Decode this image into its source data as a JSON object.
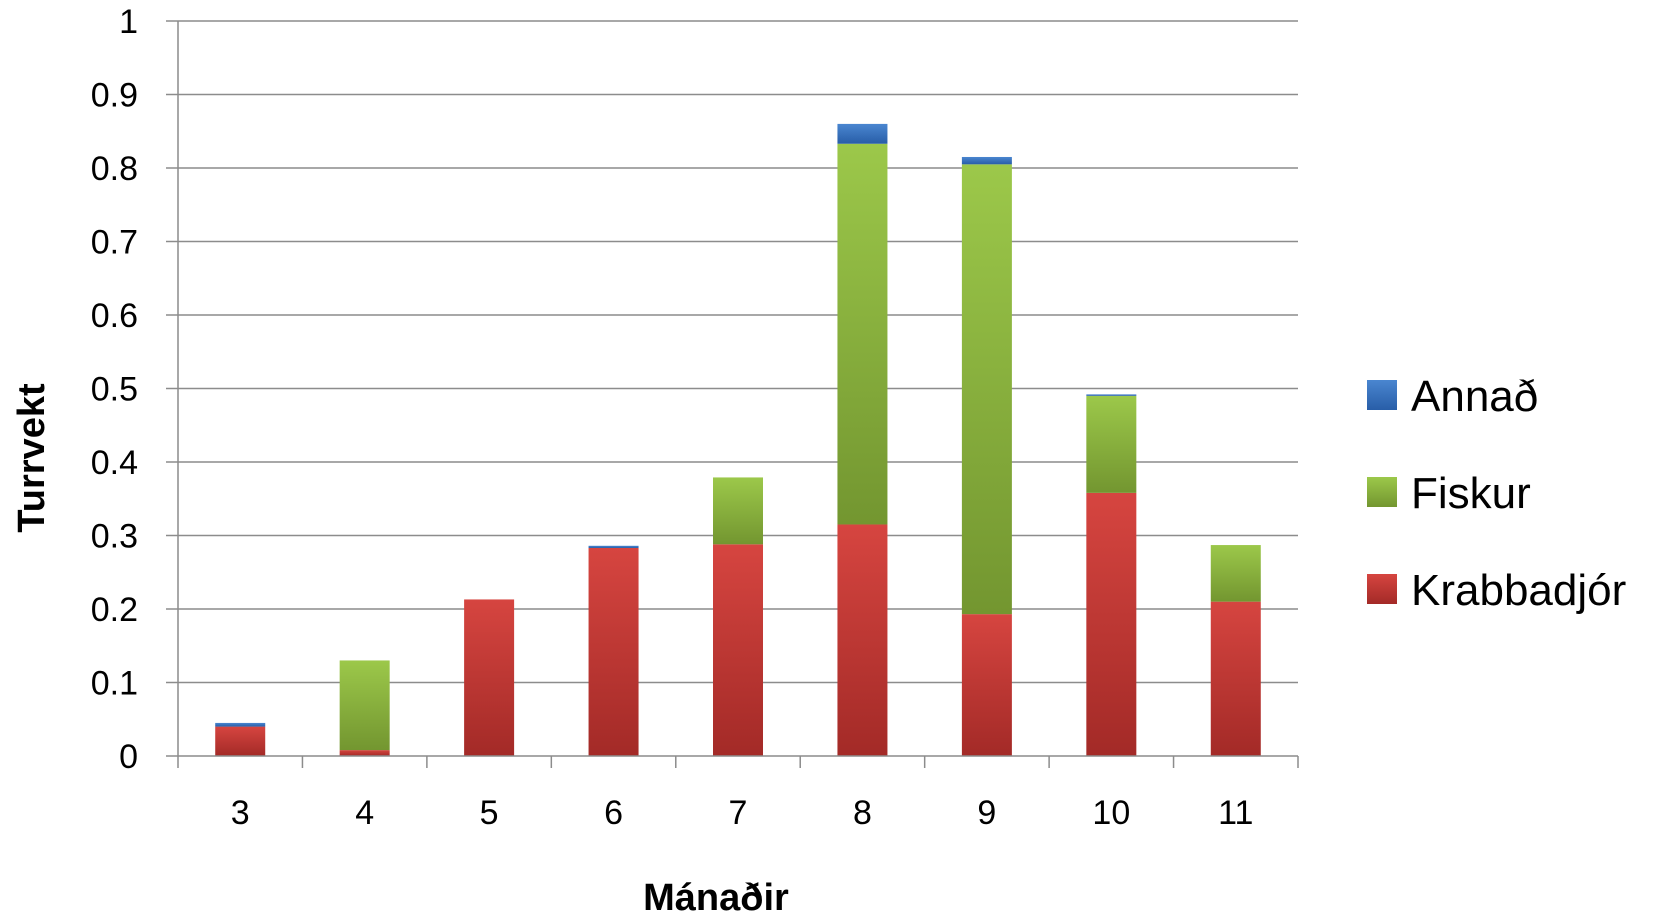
{
  "chart_data": {
    "type": "bar",
    "stacked": true,
    "categories": [
      "3",
      "4",
      "5",
      "6",
      "7",
      "8",
      "9",
      "10",
      "11"
    ],
    "series": [
      {
        "name": "Krabbadjór",
        "color": "#c0392b",
        "values": [
          0.04,
          0.008,
          0.213,
          0.283,
          0.288,
          0.315,
          0.193,
          0.358,
          0.21
        ]
      },
      {
        "name": "Fiskur",
        "color": "#8ab33a",
        "values": [
          0.0,
          0.122,
          0.0,
          0.0,
          0.091,
          0.518,
          0.612,
          0.132,
          0.077
        ]
      },
      {
        "name": "Annað",
        "color": "#2f6fbf",
        "values": [
          0.005,
          0.0,
          0.0,
          0.003,
          0.0,
          0.027,
          0.01,
          0.002,
          0.0
        ]
      }
    ],
    "xlabel": "Mánaðir",
    "ylabel": "Turrvekt",
    "ylim": [
      0,
      1
    ],
    "yticks": [
      "0",
      "0.1",
      "0.2",
      "0.3",
      "0.4",
      "0.5",
      "0.6",
      "0.7",
      "0.8",
      "0.9",
      "1"
    ],
    "grid": true,
    "legend_position": "right"
  }
}
